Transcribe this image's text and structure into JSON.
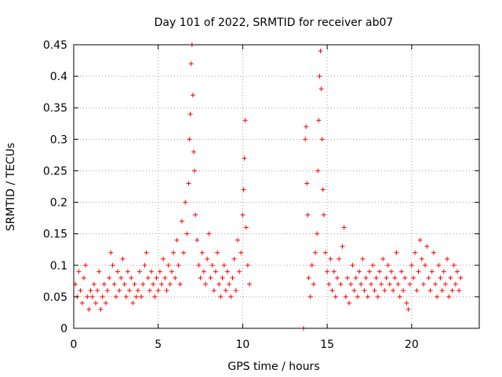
{
  "chart_data": {
    "type": "scatter",
    "title": "Day 101 of 2022, SRMTID for receiver ab07",
    "xlabel": "GPS time / hours",
    "ylabel": "SRMTID / TECUs",
    "xlim": [
      0,
      24
    ],
    "ylim": [
      0,
      0.45
    ],
    "x_ticks": [
      0,
      5,
      10,
      15,
      20
    ],
    "x_tick_labels": [
      "0",
      "5",
      "10",
      "15",
      "20"
    ],
    "y_ticks": [
      0,
      0.05,
      0.1,
      0.15,
      0.2,
      0.25,
      0.3,
      0.35,
      0.4,
      0.45
    ],
    "y_tick_labels": [
      "0",
      "0.05",
      "0.1",
      "0.15",
      "0.2",
      "0.25",
      "0.3",
      "0.35",
      "0.4",
      "0.45"
    ],
    "grid": true,
    "marker": "+",
    "color": "#ff0000",
    "series": [
      {
        "name": "SRMTID",
        "points": [
          [
            0.1,
            0.07
          ],
          [
            0.2,
            0.05
          ],
          [
            0.3,
            0.09
          ],
          [
            0.4,
            0.06
          ],
          [
            0.5,
            0.04
          ],
          [
            0.6,
            0.08
          ],
          [
            0.7,
            0.1
          ],
          [
            0.8,
            0.05
          ],
          [
            0.9,
            0.03
          ],
          [
            1.0,
            0.06
          ],
          [
            1.1,
            0.05
          ],
          [
            1.2,
            0.07
          ],
          [
            1.3,
            0.04
          ],
          [
            1.4,
            0.06
          ],
          [
            1.5,
            0.09
          ],
          [
            1.6,
            0.03
          ],
          [
            1.7,
            0.05
          ],
          [
            1.8,
            0.07
          ],
          [
            1.9,
            0.04
          ],
          [
            2.0,
            0.06
          ],
          [
            2.1,
            0.08
          ],
          [
            2.2,
            0.12
          ],
          [
            2.3,
            0.1
          ],
          [
            2.4,
            0.07
          ],
          [
            2.5,
            0.05
          ],
          [
            2.6,
            0.09
          ],
          [
            2.7,
            0.06
          ],
          [
            2.8,
            0.08
          ],
          [
            2.9,
            0.11
          ],
          [
            3.0,
            0.07
          ],
          [
            3.1,
            0.05
          ],
          [
            3.2,
            0.09
          ],
          [
            3.3,
            0.06
          ],
          [
            3.4,
            0.08
          ],
          [
            3.5,
            0.04
          ],
          [
            3.6,
            0.07
          ],
          [
            3.7,
            0.05
          ],
          [
            3.8,
            0.06
          ],
          [
            3.9,
            0.09
          ],
          [
            4.0,
            0.05
          ],
          [
            4.1,
            0.07
          ],
          [
            4.2,
            0.1
          ],
          [
            4.3,
            0.12
          ],
          [
            4.4,
            0.08
          ],
          [
            4.5,
            0.06
          ],
          [
            4.6,
            0.09
          ],
          [
            4.7,
            0.07
          ],
          [
            4.8,
            0.05
          ],
          [
            4.9,
            0.08
          ],
          [
            5.0,
            0.06
          ],
          [
            5.1,
            0.09
          ],
          [
            5.2,
            0.07
          ],
          [
            5.3,
            0.11
          ],
          [
            5.4,
            0.08
          ],
          [
            5.5,
            0.06
          ],
          [
            5.6,
            0.1
          ],
          [
            5.7,
            0.07
          ],
          [
            5.8,
            0.09
          ],
          [
            5.9,
            0.12
          ],
          [
            6.0,
            0.08
          ],
          [
            6.1,
            0.14
          ],
          [
            6.2,
            0.1
          ],
          [
            6.3,
            0.07
          ],
          [
            6.4,
            0.17
          ],
          [
            6.5,
            0.12
          ],
          [
            6.6,
            0.2
          ],
          [
            6.7,
            0.15
          ],
          [
            6.8,
            0.23
          ],
          [
            6.85,
            0.3
          ],
          [
            6.9,
            0.34
          ],
          [
            6.95,
            0.42
          ],
          [
            7.0,
            0.45
          ],
          [
            7.05,
            0.37
          ],
          [
            7.1,
            0.28
          ],
          [
            7.15,
            0.25
          ],
          [
            7.2,
            0.18
          ],
          [
            7.3,
            0.14
          ],
          [
            7.4,
            0.1
          ],
          [
            7.5,
            0.08
          ],
          [
            7.6,
            0.12
          ],
          [
            7.7,
            0.09
          ],
          [
            7.8,
            0.07
          ],
          [
            7.9,
            0.11
          ],
          [
            8.0,
            0.15
          ],
          [
            8.1,
            0.08
          ],
          [
            8.2,
            0.1
          ],
          [
            8.3,
            0.06
          ],
          [
            8.4,
            0.09
          ],
          [
            8.5,
            0.12
          ],
          [
            8.6,
            0.07
          ],
          [
            8.7,
            0.05
          ],
          [
            8.8,
            0.08
          ],
          [
            8.9,
            0.1
          ],
          [
            9.0,
            0.06
          ],
          [
            9.1,
            0.09
          ],
          [
            9.2,
            0.07
          ],
          [
            9.3,
            0.05
          ],
          [
            9.4,
            0.08
          ],
          [
            9.5,
            0.11
          ],
          [
            9.6,
            0.06
          ],
          [
            9.7,
            0.14
          ],
          [
            9.8,
            0.09
          ],
          [
            9.9,
            0.12
          ],
          [
            10.0,
            0.18
          ],
          [
            10.05,
            0.22
          ],
          [
            10.1,
            0.27
          ],
          [
            10.15,
            0.33
          ],
          [
            10.2,
            0.16
          ],
          [
            10.3,
            0.1
          ],
          [
            10.4,
            0.07
          ],
          [
            13.6,
            0.0
          ],
          [
            13.7,
            0.3
          ],
          [
            13.75,
            0.32
          ],
          [
            13.8,
            0.23
          ],
          [
            13.85,
            0.18
          ],
          [
            13.9,
            0.08
          ],
          [
            14.0,
            0.05
          ],
          [
            14.1,
            0.1
          ],
          [
            14.2,
            0.07
          ],
          [
            14.3,
            0.12
          ],
          [
            14.4,
            0.15
          ],
          [
            14.45,
            0.25
          ],
          [
            14.5,
            0.33
          ],
          [
            14.55,
            0.4
          ],
          [
            14.6,
            0.44
          ],
          [
            14.65,
            0.38
          ],
          [
            14.7,
            0.3
          ],
          [
            14.75,
            0.22
          ],
          [
            14.8,
            0.18
          ],
          [
            14.9,
            0.12
          ],
          [
            15.0,
            0.09
          ],
          [
            15.1,
            0.07
          ],
          [
            15.2,
            0.11
          ],
          [
            15.3,
            0.06
          ],
          [
            15.4,
            0.09
          ],
          [
            15.5,
            0.05
          ],
          [
            15.6,
            0.08
          ],
          [
            15.7,
            0.11
          ],
          [
            15.8,
            0.07
          ],
          [
            15.9,
            0.13
          ],
          [
            16.0,
            0.16
          ],
          [
            16.1,
            0.05
          ],
          [
            16.2,
            0.08
          ],
          [
            16.3,
            0.04
          ],
          [
            16.4,
            0.07
          ],
          [
            16.5,
            0.1
          ],
          [
            16.6,
            0.06
          ],
          [
            16.7,
            0.08
          ],
          [
            16.8,
            0.05
          ],
          [
            16.9,
            0.09
          ],
          [
            17.0,
            0.07
          ],
          [
            17.1,
            0.11
          ],
          [
            17.2,
            0.06
          ],
          [
            17.3,
            0.08
          ],
          [
            17.4,
            0.05
          ],
          [
            17.5,
            0.09
          ],
          [
            17.6,
            0.07
          ],
          [
            17.7,
            0.1
          ],
          [
            17.8,
            0.06
          ],
          [
            17.9,
            0.08
          ],
          [
            18.0,
            0.05
          ],
          [
            18.1,
            0.09
          ],
          [
            18.2,
            0.07
          ],
          [
            18.3,
            0.11
          ],
          [
            18.4,
            0.06
          ],
          [
            18.5,
            0.08
          ],
          [
            18.6,
            0.1
          ],
          [
            18.7,
            0.07
          ],
          [
            18.8,
            0.09
          ],
          [
            18.9,
            0.06
          ],
          [
            19.0,
            0.08
          ],
          [
            19.1,
            0.12
          ],
          [
            19.2,
            0.07
          ],
          [
            19.3,
            0.05
          ],
          [
            19.4,
            0.09
          ],
          [
            19.5,
            0.06
          ],
          [
            19.6,
            0.08
          ],
          [
            19.7,
            0.04
          ],
          [
            19.8,
            0.03
          ],
          [
            19.9,
            0.07
          ],
          [
            20.0,
            0.1
          ],
          [
            20.1,
            0.08
          ],
          [
            20.2,
            0.12
          ],
          [
            20.3,
            0.06
          ],
          [
            20.4,
            0.09
          ],
          [
            20.5,
            0.14
          ],
          [
            20.6,
            0.11
          ],
          [
            20.7,
            0.07
          ],
          [
            20.8,
            0.1
          ],
          [
            20.9,
            0.13
          ],
          [
            21.0,
            0.08
          ],
          [
            21.1,
            0.06
          ],
          [
            21.2,
            0.09
          ],
          [
            21.3,
            0.12
          ],
          [
            21.4,
            0.07
          ],
          [
            21.5,
            0.05
          ],
          [
            21.6,
            0.1
          ],
          [
            21.7,
            0.08
          ],
          [
            21.8,
            0.06
          ],
          [
            21.9,
            0.09
          ],
          [
            22.0,
            0.07
          ],
          [
            22.1,
            0.11
          ],
          [
            22.2,
            0.05
          ],
          [
            22.3,
            0.08
          ],
          [
            22.4,
            0.06
          ],
          [
            22.5,
            0.1
          ],
          [
            22.6,
            0.07
          ],
          [
            22.7,
            0.09
          ],
          [
            22.8,
            0.06
          ],
          [
            22.9,
            0.08
          ]
        ]
      }
    ]
  }
}
